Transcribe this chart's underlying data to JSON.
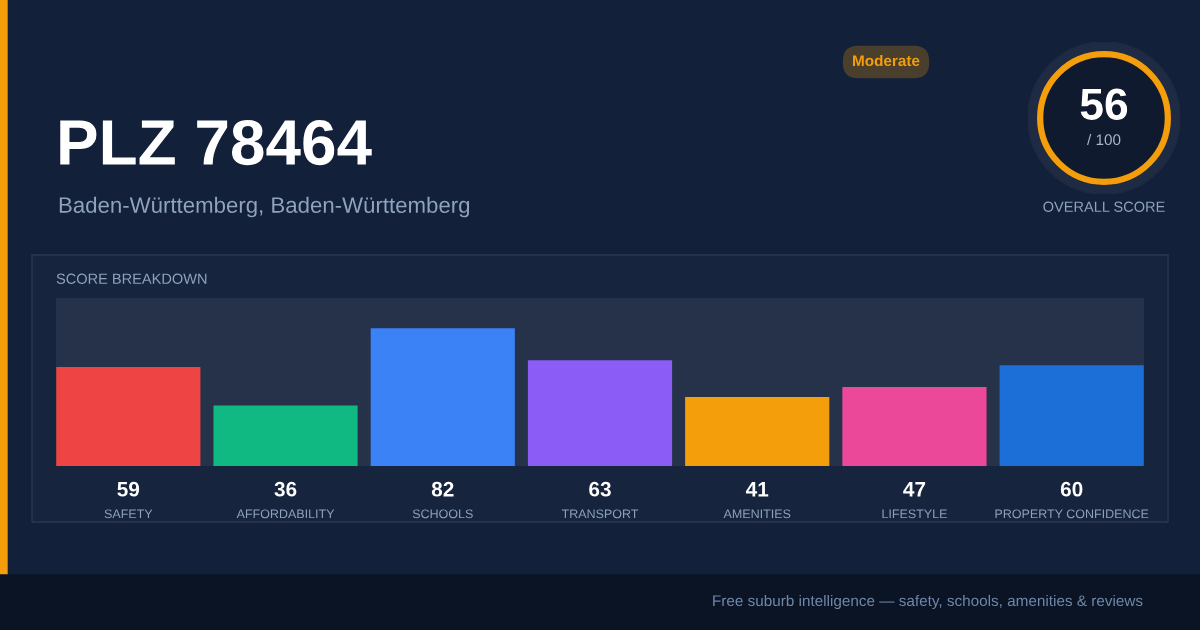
{
  "chart_data": {
    "type": "bar",
    "title": "PLZ 78464",
    "subtitle": "Baden-Württemberg, Baden-Württemberg",
    "categories": [
      "SAFETY",
      "AFFORDABILITY",
      "SCHOOLS",
      "TRANSPORT",
      "AMENITIES",
      "LIFESTYLE",
      "PROPERTY CONFIDENCE"
    ],
    "values": [
      59,
      36,
      82,
      63,
      41,
      47,
      60
    ],
    "colors": [
      "#ef4444",
      "#10b981",
      "#3b82f6",
      "#8b5cf6",
      "#f59e0b",
      "#ec4899",
      "#1d6fd8"
    ],
    "ylim": [
      0,
      100
    ],
    "data_labels": true,
    "grid": false,
    "legend": false,
    "tick_labels": "x",
    "annotations": [
      "SCORE BREAKDOWN",
      "Moderate",
      "56",
      "/ 100",
      "OVERALL SCORE",
      "Free suburb intelligence — safety, schools, amenities & reviews"
    ]
  }
}
